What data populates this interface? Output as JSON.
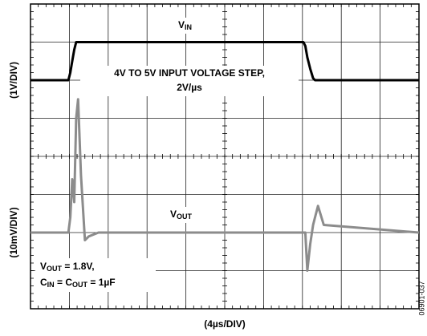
{
  "chart_data": {
    "type": "line",
    "ylabel": "(1V/DIV)",
    "y2label": "(10mV/DIV)",
    "xlabel": "(4µs/DIV)",
    "code": "06901-037",
    "annotations": {
      "vin": [
        "V",
        "IN"
      ],
      "step": [
        "4V TO 5V INPUT VOLTAGE STEP,",
        "2V/µs"
      ],
      "vout": [
        "V",
        "OUT"
      ],
      "cond1": [
        "V",
        "OUT",
        " = 1.8V,"
      ],
      "cond2": [
        "C",
        "IN",
        " = C",
        "OUT",
        " = 1µF"
      ]
    },
    "x": [
      0,
      3.9,
      4.1,
      4.3,
      4.5,
      4.7,
      4.9,
      5.2,
      5.6,
      6.0,
      7,
      28.1,
      28.3,
      28.5,
      28.8,
      29.1,
      29.3,
      29.6,
      30.2,
      40
    ],
    "series": [
      {
        "name": "VIN",
        "color": "#000000",
        "values": [
          4,
          4,
          4.2,
          4.5,
          4.8,
          5,
          5,
          5,
          5,
          5,
          5,
          5,
          4.9,
          4.6,
          4.3,
          4.05,
          4,
          4,
          4,
          4
        ]
      },
      {
        "name": "VOUT",
        "color": "#8c8c8c",
        "axis": "y2",
        "values": [
          0,
          0,
          4,
          14,
          8,
          30,
          35,
          15,
          -2,
          -1,
          0,
          0,
          0,
          -10,
          -3,
          2,
          4,
          7,
          2,
          0
        ]
      }
    ],
    "xlim": [
      0,
      40
    ],
    "xticks": [
      0,
      4,
      8,
      12,
      16,
      20,
      24,
      28,
      32,
      36,
      40
    ],
    "ylim": [
      -2,
      6
    ],
    "yticks": [
      -2,
      -1,
      0,
      1,
      2,
      3,
      4,
      5,
      6
    ],
    "y2lim": [
      -20,
      60
    ],
    "grid": true
  }
}
